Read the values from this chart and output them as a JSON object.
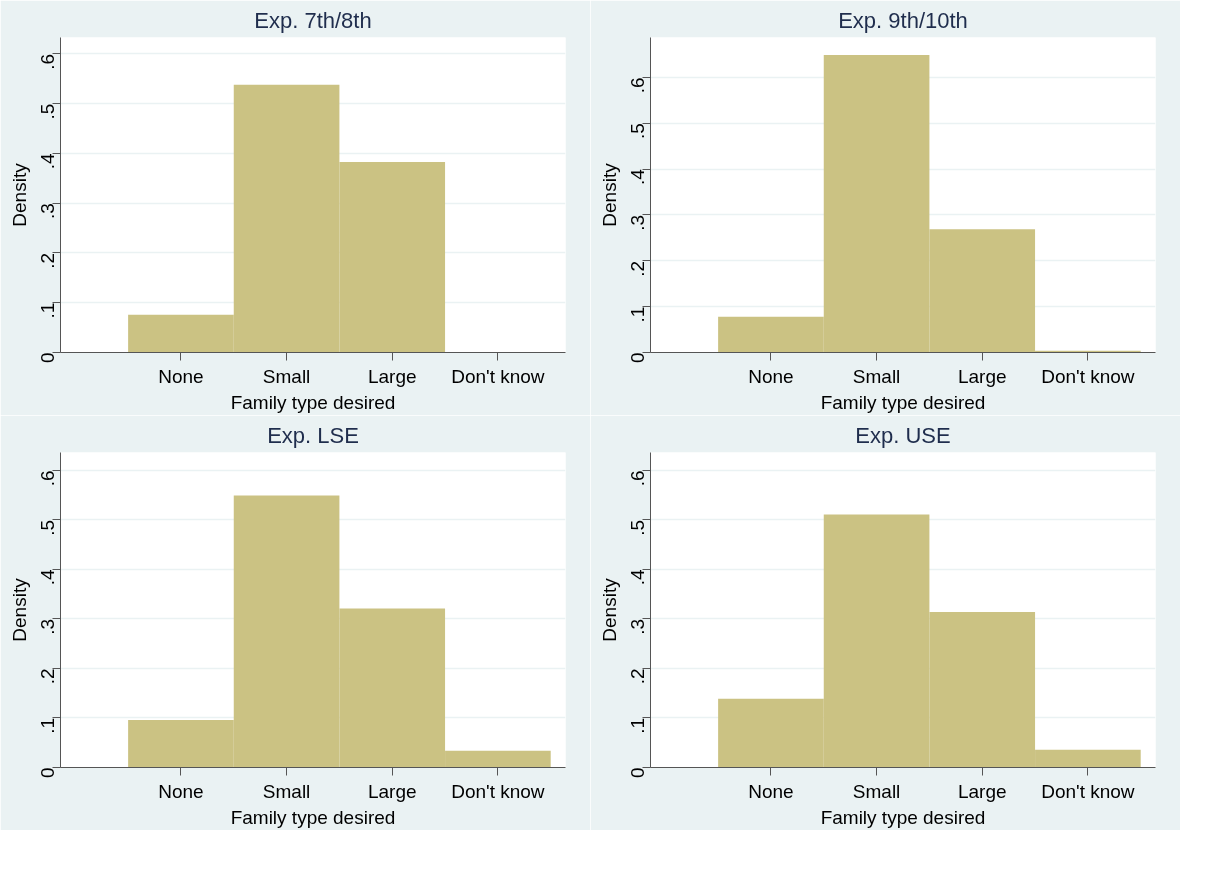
{
  "chart_data": [
    {
      "type": "bar",
      "title": "Exp. 7th/8th",
      "xlabel": "Family type desired",
      "ylabel": "Density",
      "categories": [
        "None",
        "Small",
        "Large",
        "Don't know"
      ],
      "values": [
        0.076,
        0.538,
        0.383,
        0
      ],
      "color": "#cbc283",
      "ylim": [
        0,
        0.633
      ],
      "yticks": [
        {
          "value": 0,
          "label": "0"
        },
        {
          "value": 0.1,
          "label": ".1"
        },
        {
          "value": 0.2,
          "label": ".2"
        },
        {
          "value": 0.3,
          "label": ".3"
        },
        {
          "value": 0.4,
          "label": ".4"
        },
        {
          "value": 0.5,
          "label": ".5"
        },
        {
          "value": 0.6,
          "label": ".6"
        }
      ],
      "grid": "y"
    },
    {
      "type": "bar",
      "title": "Exp. 9th/10th",
      "xlabel": "Family type desired",
      "ylabel": "Density",
      "categories": [
        "None",
        "Small",
        "Large",
        "Don't know"
      ],
      "values": [
        0.078,
        0.649,
        0.269,
        0.004
      ],
      "color": "#cbc283",
      "ylim": [
        0,
        0.687
      ],
      "yticks": [
        {
          "value": 0,
          "label": "0"
        },
        {
          "value": 0.1,
          "label": ".1"
        },
        {
          "value": 0.2,
          "label": ".2"
        },
        {
          "value": 0.3,
          "label": ".3"
        },
        {
          "value": 0.4,
          "label": ".4"
        },
        {
          "value": 0.5,
          "label": ".5"
        },
        {
          "value": 0.6,
          "label": ".6"
        }
      ],
      "grid": "y"
    },
    {
      "type": "bar",
      "title": "Exp. LSE",
      "xlabel": "Family type desired",
      "ylabel": "Density",
      "categories": [
        "None",
        "Small",
        "Large",
        "Don't know"
      ],
      "values": [
        0.096,
        0.549,
        0.321,
        0.034
      ],
      "color": "#cbc283",
      "ylim": [
        0,
        0.636
      ],
      "yticks": [
        {
          "value": 0,
          "label": "0"
        },
        {
          "value": 0.1,
          "label": ".1"
        },
        {
          "value": 0.2,
          "label": ".2"
        },
        {
          "value": 0.3,
          "label": ".3"
        },
        {
          "value": 0.4,
          "label": ".4"
        },
        {
          "value": 0.5,
          "label": ".5"
        },
        {
          "value": 0.6,
          "label": ".6"
        }
      ],
      "grid": "y"
    },
    {
      "type": "bar",
      "title": "Exp. USE",
      "xlabel": "Family type desired",
      "ylabel": "Density",
      "categories": [
        "None",
        "Small",
        "Large",
        "Don't know"
      ],
      "values": [
        0.139,
        0.511,
        0.314,
        0.036
      ],
      "color": "#cbc283",
      "ylim": [
        0,
        0.636
      ],
      "yticks": [
        {
          "value": 0,
          "label": "0"
        },
        {
          "value": 0.1,
          "label": ".1"
        },
        {
          "value": 0.2,
          "label": ".2"
        },
        {
          "value": 0.3,
          "label": ".3"
        },
        {
          "value": 0.4,
          "label": ".4"
        },
        {
          "value": 0.5,
          "label": ".5"
        },
        {
          "value": 0.6,
          "label": ".6"
        }
      ],
      "grid": "y"
    }
  ]
}
